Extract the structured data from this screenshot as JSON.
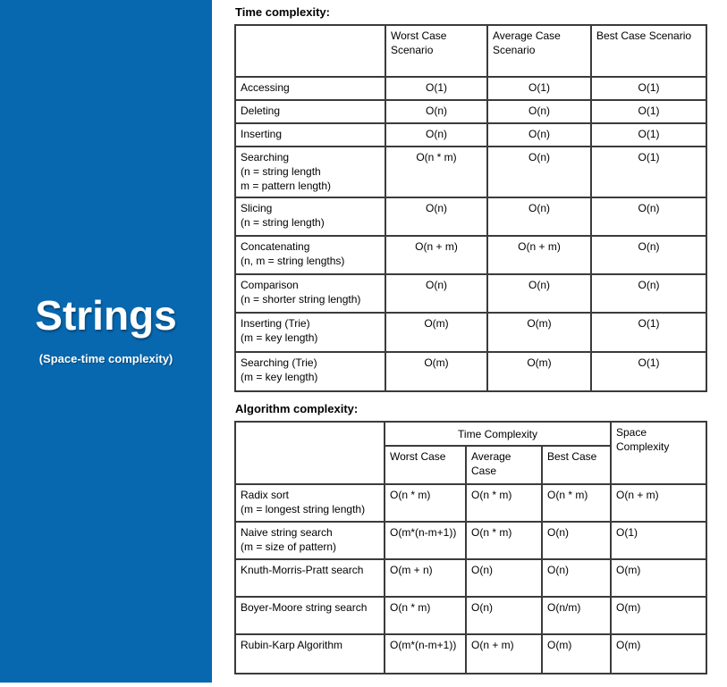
{
  "sidebar": {
    "title": "Strings",
    "subtitle": "(Space-time complexity)",
    "bg_color": "#0768b0"
  },
  "time_table": {
    "title": "Time complexity:",
    "columns": [
      "Worst Case Scenario",
      "Average Case Scenario",
      "Best Case Scenario"
    ],
    "rows": [
      {
        "label": "Accessing",
        "sub": "",
        "worst": "O(1)",
        "average": "O(1)",
        "best": "O(1)"
      },
      {
        "label": "Deleting",
        "sub": "",
        "worst": "O(n)",
        "average": "O(n)",
        "best": "O(1)"
      },
      {
        "label": "Inserting",
        "sub": "",
        "worst": "O(n)",
        "average": "O(n)",
        "best": "O(1)"
      },
      {
        "label": "Searching",
        "sub": "(n = string length\nm = pattern length)",
        "worst": "O(n * m)",
        "average": "O(n)",
        "best": "O(1)"
      },
      {
        "label": "Slicing",
        "sub": "(n = string length)",
        "worst": "O(n)",
        "average": "O(n)",
        "best": "O(n)"
      },
      {
        "label": "Concatenating",
        "sub": "(n, m = string lengths)",
        "worst": "O(n + m)",
        "average": "O(n + m)",
        "best": "O(n)"
      },
      {
        "label": "Comparison",
        "sub": "(n = shorter string length)",
        "worst": "O(n)",
        "average": "O(n)",
        "best": "O(n)"
      },
      {
        "label": "Inserting (Trie)",
        "sub": "(m = key length)",
        "worst": "O(m)",
        "average": "O(m)",
        "best": "O(1)"
      },
      {
        "label": "Searching (Trie)",
        "sub": "(m = key length)",
        "worst": "O(m)",
        "average": "O(m)",
        "best": "O(1)"
      }
    ]
  },
  "algorithm_table": {
    "title": "Algorithm complexity:",
    "group_header": "Time Complexity",
    "space_header": "Space Complexity",
    "sub_columns": [
      "Worst Case",
      "Average Case",
      "Best Case"
    ],
    "rows": [
      {
        "label": "Radix sort",
        "sub": "(m = longest string length)",
        "worst": "O(n * m)",
        "average": "O(n * m)",
        "best": "O(n * m)",
        "space": "O(n + m)"
      },
      {
        "label": "Naive string search",
        "sub": "(m = size of pattern)",
        "worst": "O(m*(n-m+1))",
        "average": "O(n * m)",
        "best": "O(n)",
        "space": "O(1)"
      },
      {
        "label": "Knuth-Morris-Pratt search",
        "sub": "",
        "worst": "O(m + n)",
        "average": "O(n)",
        "best": "O(n)",
        "space": "O(m)"
      },
      {
        "label": "Boyer-Moore string search",
        "sub": "",
        "worst": "O(n * m)",
        "average": "O(n)",
        "best": "O(n/m)",
        "space": "O(m)"
      },
      {
        "label": "Rubin-Karp Algorithm",
        "sub": "",
        "worst": "O(m*(n-m+1))",
        "average": "O(n + m)",
        "best": "O(m)",
        "space": "O(m)"
      }
    ]
  }
}
